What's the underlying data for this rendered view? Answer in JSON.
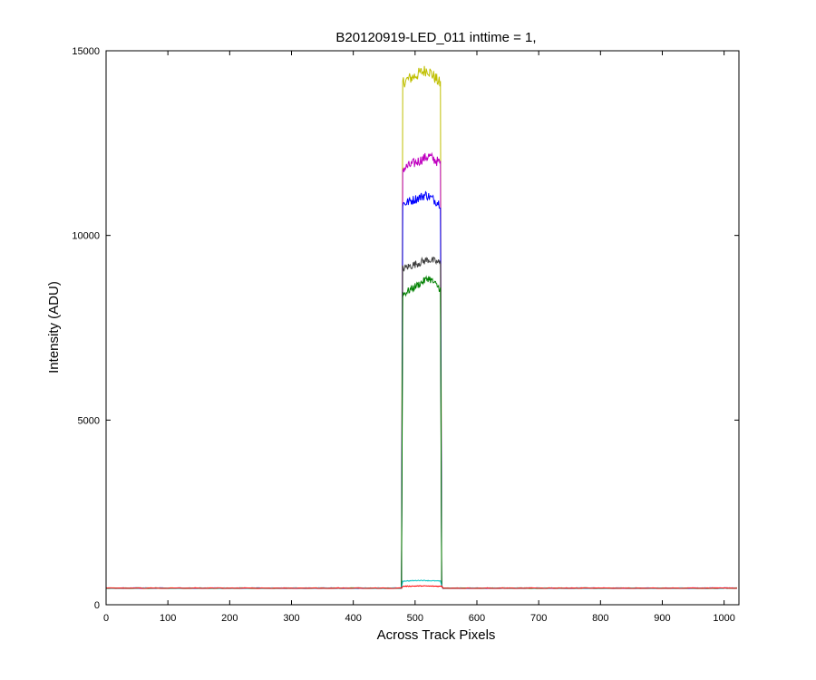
{
  "chart_data": {
    "type": "line",
    "title": "B20120919-LED_011 inttime = 1,",
    "xlabel": "Across Track Pixels",
    "ylabel": "Intensity (ADU)",
    "xlim": [
      0,
      1024
    ],
    "ylim": [
      0,
      15000
    ],
    "xticks": [
      0,
      100,
      200,
      300,
      400,
      500,
      600,
      700,
      800,
      900,
      1000
    ],
    "yticks": [
      0,
      5000,
      10000,
      15000
    ],
    "grid": false,
    "legend": "none",
    "baseline": 450,
    "plateau_x": [
      480,
      541
    ],
    "series": [
      {
        "color": "#bfbf00",
        "peak_x": 520,
        "values": {
          "left": 14150,
          "center": 14500,
          "right": 14100
        }
      },
      {
        "color": "#bf00bf",
        "peak_x": 522,
        "values": {
          "left": 11800,
          "center": 12150,
          "right": 11950
        }
      },
      {
        "color": "#0000ff",
        "peak_x": 518,
        "values": {
          "left": 10850,
          "center": 11100,
          "right": 10850
        }
      },
      {
        "color": "#404040",
        "peak_x": 522,
        "values": {
          "left": 9100,
          "center": 9350,
          "right": 9250
        }
      },
      {
        "color": "#008000",
        "peak_x": 522,
        "values": {
          "left": 8400,
          "center": 8850,
          "right": 8550
        }
      },
      {
        "color": "#00bfbf",
        "peak_x": 510,
        "values": {
          "left": 640,
          "center": 660,
          "right": 640
        }
      },
      {
        "color": "#ff0000",
        "peak_x": 510,
        "values": {
          "left": 500,
          "center": 510,
          "right": 500
        }
      }
    ]
  }
}
